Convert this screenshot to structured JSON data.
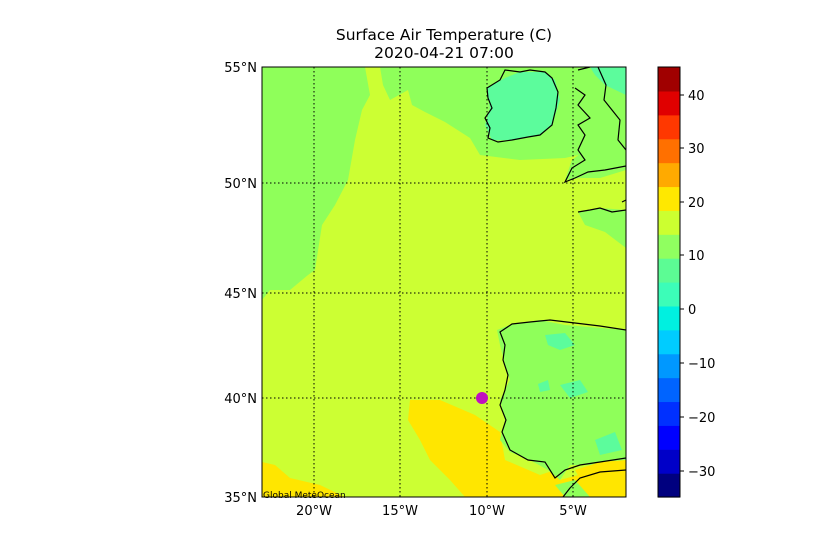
{
  "title": {
    "line1": "Surface Air Temperature (C)",
    "line2": "2020-04-21 07:00"
  },
  "map": {
    "lon_range": [
      -23,
      -2
    ],
    "lat_range": [
      35,
      55
    ],
    "lat_ticks": [
      "55°N",
      "50°N",
      "45°N",
      "40°N",
      "35°N"
    ],
    "lon_ticks": [
      "20°W",
      "15°W",
      "10°W",
      "5°W"
    ],
    "gridlines": "dotted",
    "credit": "Global MeteOcean",
    "marker": {
      "lon": -10.3,
      "lat": 40.0,
      "color": "#c010c0"
    }
  },
  "colorbar": {
    "range": [
      -35,
      45
    ],
    "tick_labels": [
      "40",
      "30",
      "20",
      "10",
      "0",
      "−10",
      "−20",
      "−30"
    ],
    "colors": [
      "#00007f",
      "#0000c8",
      "#0000ff",
      "#0030ff",
      "#0064ff",
      "#0098ff",
      "#00ccff",
      "#00f0e0",
      "#3cfdb8",
      "#5cfc94",
      "#90ff60",
      "#ccff30",
      "#ffe800",
      "#ffaa00",
      "#ff7000",
      "#ff3800",
      "#e00000",
      "#a00000"
    ]
  },
  "field_colors": {
    "ocean_cool": "#8fff5a",
    "ocean_mid": "#ccff33",
    "ocean_warm": "#ffe600",
    "land_cold": "#5cfc9c",
    "land": "#8fff5a"
  }
}
